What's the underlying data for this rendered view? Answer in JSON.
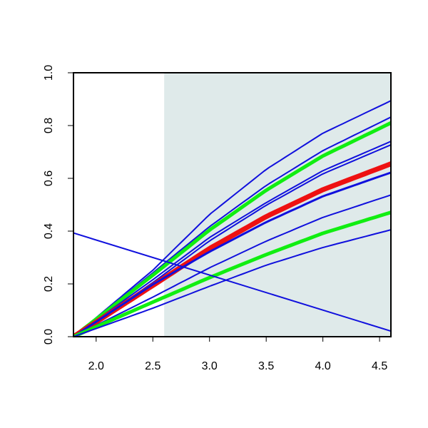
{
  "chart_data": {
    "type": "line",
    "title": "",
    "xlabel": "",
    "ylabel": "",
    "xlim": [
      1.8,
      4.6
    ],
    "ylim": [
      0.0,
      1.0
    ],
    "x_ticks": [
      2.0,
      2.5,
      3.0,
      3.5,
      4.0,
      4.5
    ],
    "x_tick_labels": [
      "2.0",
      "2.5",
      "3.0",
      "3.5",
      "4.0",
      "4.5"
    ],
    "y_ticks": [
      0.0,
      0.2,
      0.4,
      0.6,
      0.8,
      1.0
    ],
    "y_tick_labels": [
      "0.0",
      "0.2",
      "0.4",
      "0.6",
      "0.8",
      "1.0"
    ],
    "grid": false,
    "legend": "none",
    "shaded_region": {
      "x_from": 2.6,
      "x_to": 4.6,
      "color": "#dfeaea"
    },
    "colors": {
      "blue": "#1010dd",
      "green": "#11ee11",
      "red": "#ee1111",
      "shade": "#dfeaea"
    },
    "series": [
      {
        "color": "blue",
        "width": 2,
        "x": [
          1.8,
          2.5,
          3.0,
          3.5,
          4.0,
          4.6
        ],
        "y": [
          0.0,
          0.252,
          0.463,
          0.634,
          0.771,
          0.894
        ]
      },
      {
        "color": "blue",
        "width": 2,
        "x": [
          1.8,
          2.5,
          3.0,
          3.5,
          4.0,
          4.6
        ],
        "y": [
          0.0,
          0.242,
          0.417,
          0.573,
          0.705,
          0.832
        ]
      },
      {
        "color": "green",
        "width": 5,
        "x": [
          1.8,
          2.5,
          3.0,
          3.5,
          4.0,
          4.6
        ],
        "y": [
          0.0,
          0.233,
          0.404,
          0.555,
          0.685,
          0.81
        ]
      },
      {
        "color": "blue",
        "width": 2,
        "x": [
          1.8,
          2.5,
          3.0,
          3.5,
          4.0,
          4.6
        ],
        "y": [
          0.0,
          0.216,
          0.376,
          0.508,
          0.629,
          0.74
        ]
      },
      {
        "color": "blue",
        "width": 2,
        "x": [
          1.8,
          2.5,
          3.0,
          3.5,
          4.0,
          4.6
        ],
        "y": [
          0.0,
          0.205,
          0.363,
          0.498,
          0.617,
          0.727
        ]
      },
      {
        "color": "red",
        "width": 7,
        "x": [
          1.8,
          2.5,
          3.0,
          3.5,
          4.0,
          4.6
        ],
        "y": [
          0.0,
          0.194,
          0.334,
          0.455,
          0.557,
          0.655
        ]
      },
      {
        "color": "blue",
        "width": 3,
        "x": [
          1.8,
          2.5,
          3.0,
          3.5,
          4.0,
          4.6
        ],
        "y": [
          0.0,
          0.198,
          0.322,
          0.434,
          0.532,
          0.622
        ]
      },
      {
        "color": "blue",
        "width": 2,
        "x": [
          1.8,
          2.5,
          3.0,
          3.5,
          4.0,
          4.6
        ],
        "y": [
          0.0,
          0.15,
          0.261,
          0.362,
          0.452,
          0.537
        ]
      },
      {
        "color": "green",
        "width": 5,
        "x": [
          1.8,
          2.5,
          3.0,
          3.5,
          4.0,
          4.6
        ],
        "y": [
          0.0,
          0.131,
          0.224,
          0.311,
          0.392,
          0.471
        ]
      },
      {
        "color": "blue",
        "width": 2,
        "x": [
          1.8,
          2.5,
          3.0,
          3.5,
          4.0,
          4.6
        ],
        "y": [
          0.0,
          0.108,
          0.191,
          0.271,
          0.338,
          0.405
        ]
      },
      {
        "color": "blue",
        "width": 2,
        "x": [
          1.8,
          4.6
        ],
        "y": [
          0.393,
          0.021
        ]
      }
    ]
  }
}
